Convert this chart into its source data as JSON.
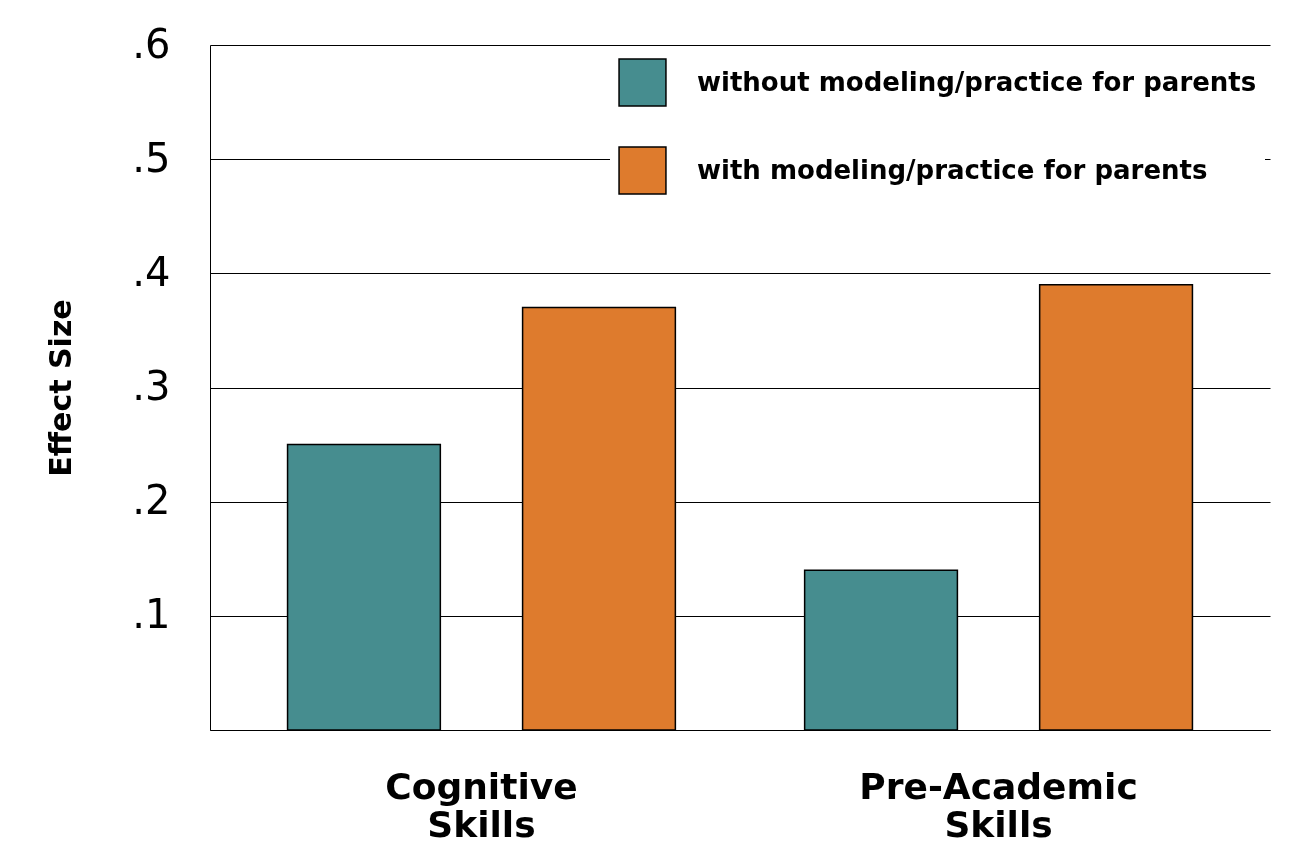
{
  "chart_data": {
    "type": "bar",
    "ylabel": "Effect Size",
    "categories": [
      "Cognitive Skills",
      "Pre-Academic Skills"
    ],
    "series": [
      {
        "name": "without modeling/practice for parents",
        "color": "#468d8f",
        "values": [
          0.25,
          0.14
        ]
      },
      {
        "name": "with modeling/practice for parents",
        "color": "#de7b2d",
        "values": [
          0.37,
          0.39
        ]
      }
    ],
    "ylim": [
      0,
      0.6
    ],
    "yticks": [
      {
        "value": 0,
        "label": null
      },
      {
        "value": 0.1,
        "label": ".1"
      },
      {
        "value": 0.2,
        "label": ".2"
      },
      {
        "value": 0.3,
        "label": ".3"
      },
      {
        "value": 0.4,
        "label": ".4"
      },
      {
        "value": 0.5,
        "label": ".5"
      },
      {
        "value": 0.6,
        "label": ".6"
      }
    ],
    "grid": "y",
    "legend": "top right"
  }
}
